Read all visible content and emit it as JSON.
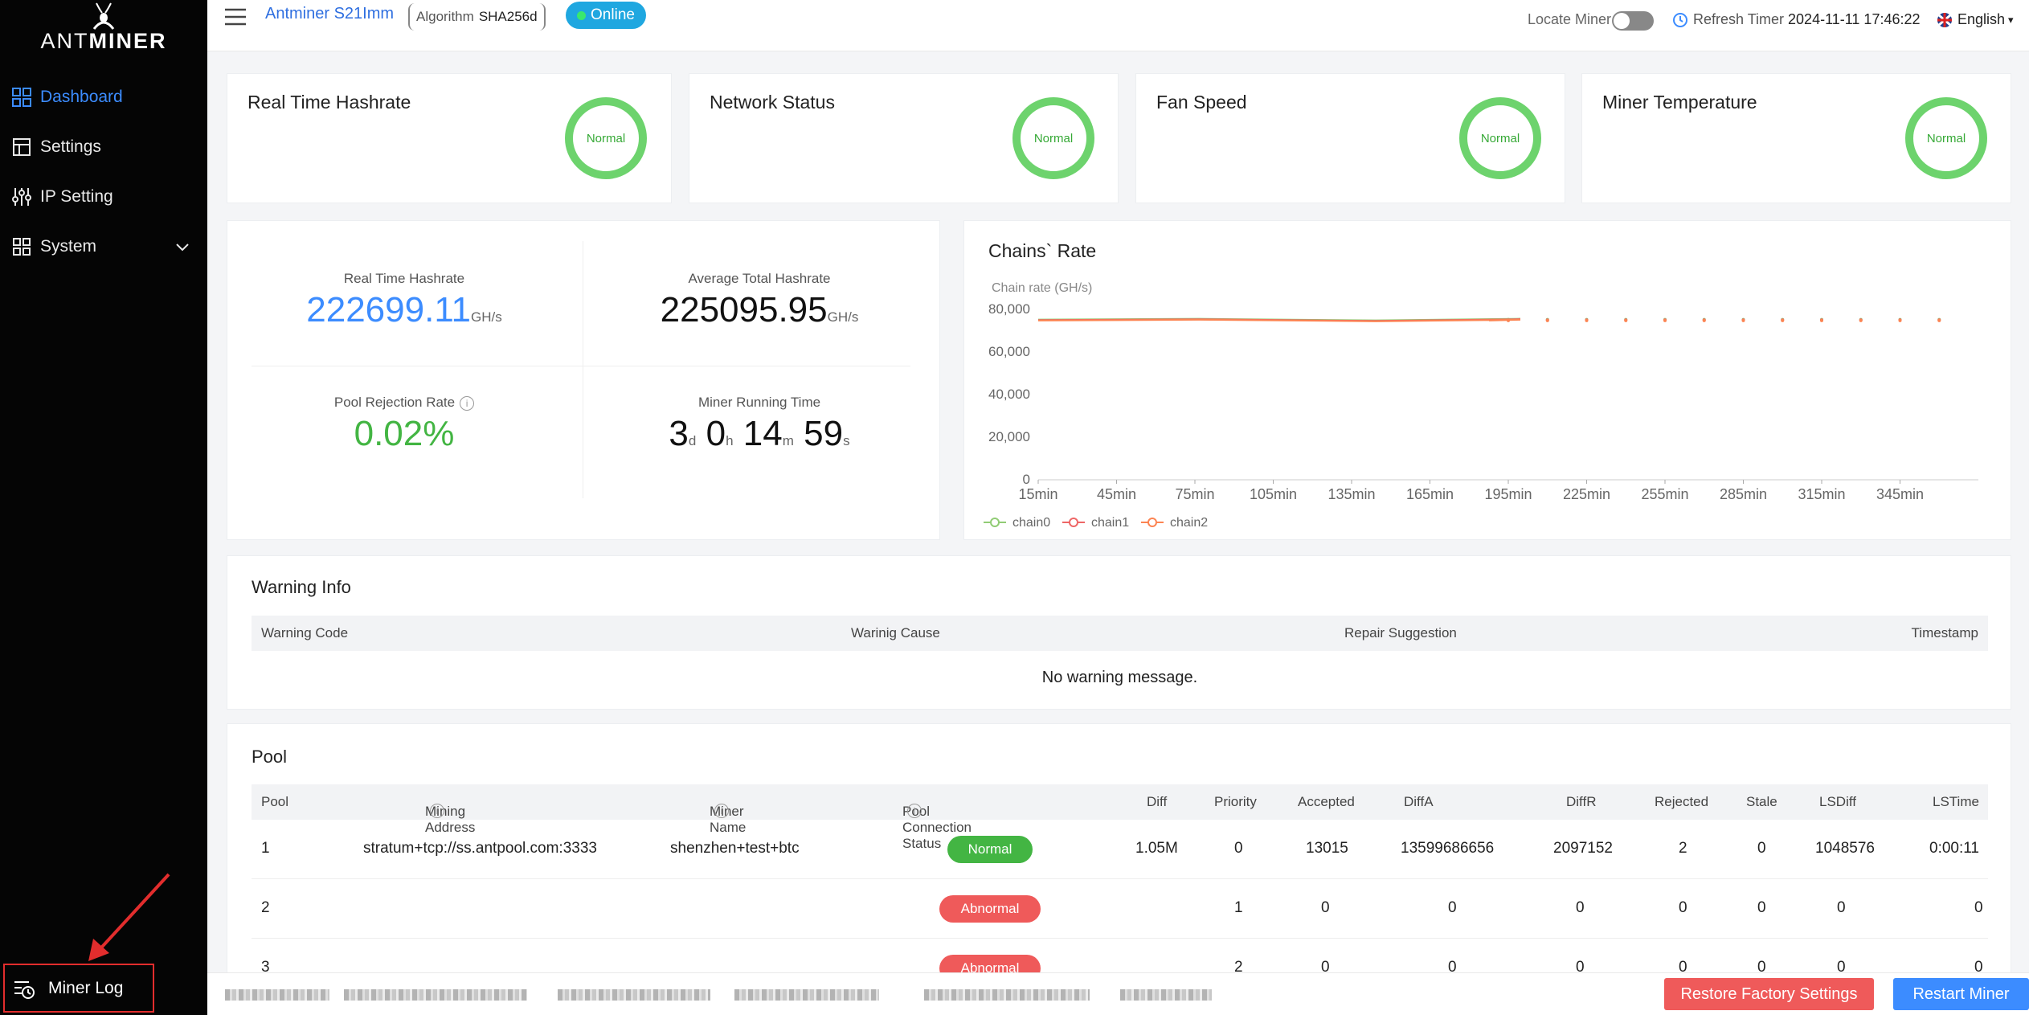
{
  "brand": {
    "prefix": "ANT",
    "suffix": "MINER"
  },
  "sidebar": {
    "items": [
      {
        "label": "Dashboard",
        "icon": "dashboard-icon",
        "active": true
      },
      {
        "label": "Settings",
        "icon": "settings-icon"
      },
      {
        "label": "IP Setting",
        "icon": "sliders-icon"
      },
      {
        "label": "System",
        "icon": "grid-icon",
        "expandable": true
      }
    ],
    "miner_log": "Miner Log"
  },
  "topbar": {
    "model": "Antminer S21Imm",
    "algorithm_label": "Algorithm",
    "algorithm_value": "SHA256d",
    "status": "Online",
    "locate_label": "Locate Miner",
    "refresh_label": "Refresh Timer",
    "refresh_time": "2024-11-11 17:46:22",
    "language": "English"
  },
  "status_cards": [
    {
      "title": "Real Time Hashrate",
      "state": "Normal"
    },
    {
      "title": "Network Status",
      "state": "Normal"
    },
    {
      "title": "Fan Speed",
      "state": "Normal"
    },
    {
      "title": "Miner Temperature",
      "state": "Normal"
    }
  ],
  "hashrate": {
    "realtime_label": "Real Time Hashrate",
    "realtime_value": "222699.11",
    "realtime_unit": "GH/s",
    "average_label": "Average Total Hashrate",
    "average_value": "225095.95",
    "average_unit": "GH/s",
    "rejection_label": "Pool Rejection Rate",
    "rejection_value": "0.02%",
    "running_label": "Miner Running Time",
    "running": {
      "d": "3",
      "d_unit": "d",
      "h": "0",
      "h_unit": "h",
      "m": "14",
      "m_unit": "m",
      "s": "59",
      "s_unit": "s"
    }
  },
  "chart_data": {
    "type": "line",
    "title": "Chains` Rate",
    "ylabel": "Chain rate (GH/s)",
    "x": [
      "15min",
      "45min",
      "75min",
      "105min",
      "135min",
      "165min",
      "195min",
      "225min",
      "255min",
      "285min",
      "315min",
      "345min"
    ],
    "ylim": [
      0,
      80000
    ],
    "yticks": [
      "80,000",
      "60,000",
      "40,000",
      "20,000",
      "0"
    ],
    "legend": [
      "chain0",
      "chain1",
      "chain2"
    ],
    "series": [
      {
        "name": "chain0",
        "values": [
          75000,
          75000,
          75000,
          75000,
          75000,
          75000,
          75000,
          75000,
          75000,
          75000,
          75000,
          75000
        ]
      },
      {
        "name": "chain1",
        "values": [
          75000,
          75000,
          75000,
          75000,
          75000,
          75000,
          75000,
          75000,
          75000,
          75000,
          75000,
          75000
        ]
      },
      {
        "name": "chain2",
        "values": [
          75000,
          75000,
          75000,
          75000,
          75000,
          75000,
          75000,
          75000,
          75000,
          75000,
          75000,
          75000
        ]
      }
    ],
    "colors": {
      "chain0": "#91cc75",
      "chain1": "#ee6666",
      "chain2": "#fc8452"
    }
  },
  "warning": {
    "title": "Warning Info",
    "columns": [
      "Warning Code",
      "Warinig Cause",
      "Repair Suggestion",
      "Timestamp"
    ],
    "empty": "No warning message."
  },
  "pool": {
    "title": "Pool",
    "columns": [
      "Pool",
      "Mining Address",
      "Miner Name",
      "Pool Connection Status",
      "Diff",
      "Priority",
      "Accepted",
      "DiffA",
      "DiffR",
      "Rejected",
      "Stale",
      "LSDiff",
      "LSTime"
    ],
    "rows": [
      {
        "pool": "1",
        "address": "stratum+tcp://ss.antpool.com:3333",
        "name": "shenzhen+test+btc",
        "status": "Normal",
        "diff": "1.05M",
        "priority": "0",
        "accepted": "13015",
        "diffa": "13599686656",
        "diffr": "2097152",
        "rejected": "2",
        "stale": "0",
        "lsdiff": "1048576",
        "lstime": "0:00:11"
      },
      {
        "pool": "2",
        "address": "",
        "name": "",
        "status": "Abnormal",
        "diff": "",
        "priority": "1",
        "accepted": "0",
        "diffa": "0",
        "diffr": "0",
        "rejected": "0",
        "stale": "0",
        "lsdiff": "0",
        "lstime": "0"
      },
      {
        "pool": "3",
        "address": "",
        "name": "",
        "status": "Abnormal",
        "diff": "",
        "priority": "2",
        "accepted": "0",
        "diffa": "0",
        "diffr": "0",
        "rejected": "0",
        "stale": "0",
        "lsdiff": "0",
        "lstime": "0"
      }
    ]
  },
  "footer": {
    "restore": "Restore Factory Settings",
    "restart": "Restart Miner"
  },
  "colors": {
    "accent": "#3c8cff",
    "normal": "#43b543",
    "abnormal": "#ef5a5a",
    "online": "#1fa7e0"
  }
}
